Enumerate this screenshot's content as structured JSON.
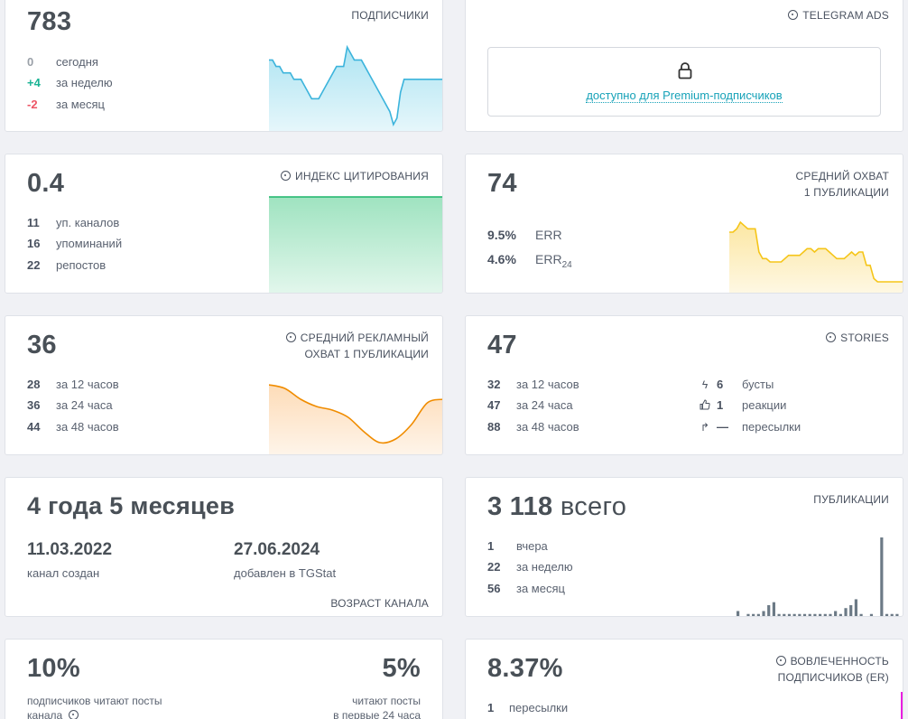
{
  "subscribers": {
    "total": "783",
    "label": "ПОДПИСЧИКИ",
    "rows": [
      {
        "num": "0",
        "text": "сегодня"
      },
      {
        "num": "+4",
        "text": "за неделю"
      },
      {
        "num": "-2",
        "text": "за месяц"
      }
    ]
  },
  "telegram_ads": {
    "label": "TELEGRAM ADS",
    "premium_text": "доступно для Premium-подписчиков"
  },
  "citation": {
    "value": "0.4",
    "label": "ИНДЕКС ЦИТИРОВАНИЯ",
    "rows": [
      {
        "num": "11",
        "text": "уп. каналов"
      },
      {
        "num": "16",
        "text": "упоминаний"
      },
      {
        "num": "22",
        "text": "репостов"
      }
    ]
  },
  "avg_reach": {
    "value": "74",
    "label_line1": "СРЕДНИЙ ОХВАТ",
    "label_line2": "1 ПУБЛИКАЦИИ",
    "err_value": "9.5%",
    "err_label": "ERR",
    "err24_value": "4.6%",
    "err24_label": "ERR",
    "err24_sub": "24"
  },
  "ad_reach": {
    "value": "36",
    "label_line1": "СРЕДНИЙ РЕКЛАМНЫЙ",
    "label_line2": "ОХВАТ 1 ПУБЛИКАЦИИ",
    "rows": [
      {
        "num": "28",
        "text": "за 12 часов"
      },
      {
        "num": "36",
        "text": "за 24 часа"
      },
      {
        "num": "44",
        "text": "за 48 часов"
      }
    ]
  },
  "stories": {
    "value": "47",
    "label": "STORIES",
    "rows": [
      {
        "num": "32",
        "text": "за 12 часов"
      },
      {
        "num": "47",
        "text": "за 24 часа"
      },
      {
        "num": "88",
        "text": "за 48 часов"
      }
    ],
    "side_rows": [
      {
        "icon": "lightning-icon",
        "num": "6",
        "text": "бусты"
      },
      {
        "icon": "thumbs-up-icon",
        "num": "1",
        "text": "реакции"
      },
      {
        "icon": "forward-arrow-icon",
        "num": "—",
        "text": "пересылки"
      }
    ]
  },
  "age": {
    "value": "4 года 5 месяцев",
    "created_date": "11.03.2022",
    "created_label": "канал создан",
    "added_date": "27.06.2024",
    "added_label": "добавлен в TGStat",
    "label": "ВОЗРАСТ КАНАЛА"
  },
  "publications": {
    "total": "3 118",
    "total_suffix": "всего",
    "label": "ПУБЛИКАЦИИ",
    "rows": [
      {
        "num": "1",
        "text": "вчера"
      },
      {
        "num": "22",
        "text": "за неделю"
      },
      {
        "num": "56",
        "text": "за месяц"
      }
    ]
  },
  "read_share": {
    "left_value": "10%",
    "left_label_1": "подписчиков читают посты",
    "left_label_2": "канала",
    "right_value": "5%",
    "right_label_1": "читают посты",
    "right_label_2": "в первые 24 часа"
  },
  "engagement": {
    "value": "8.37%",
    "label_line1": "ВОВЛЕЧЕННОСТЬ",
    "label_line2": "ПОДПИСЧИКОВ (ER)",
    "rows": [
      {
        "num": "1",
        "text": "пересылки"
      }
    ]
  },
  "chart_data": [
    {
      "type": "area",
      "name": "subscribers",
      "x": [
        1,
        2,
        3,
        4,
        5,
        6,
        7,
        8,
        9,
        10,
        11,
        12,
        13,
        14,
        15,
        16,
        17,
        18,
        19,
        20,
        21,
        22,
        23,
        24,
        25,
        26,
        27,
        28,
        29,
        30,
        31,
        32,
        33,
        34,
        35,
        36,
        37,
        38,
        39,
        40,
        41,
        42,
        43,
        44,
        45,
        46,
        47,
        48,
        49,
        50
      ],
      "values": [
        787,
        787,
        786,
        786,
        785,
        785,
        785,
        784,
        784,
        784,
        783,
        782,
        781,
        781,
        781,
        782,
        783,
        784,
        785,
        786,
        786,
        786,
        789,
        788,
        787,
        787,
        787,
        786,
        785,
        784,
        783,
        782,
        781,
        780,
        779,
        777,
        778,
        782,
        784,
        784,
        784,
        784,
        784,
        784,
        784,
        784,
        784,
        784,
        784,
        784
      ],
      "ylim": [
        776,
        790
      ],
      "color": "#3cb4dc",
      "fill": "#aee4f2"
    },
    {
      "type": "area",
      "name": "citation",
      "x": [
        1,
        2
      ],
      "values": [
        0.4,
        0.4
      ],
      "color": "#1db56a",
      "fill": "#9fe3c0"
    },
    {
      "type": "area",
      "name": "avg_reach",
      "x": [
        1,
        2,
        3,
        4,
        5,
        6,
        7,
        8,
        9,
        10,
        11,
        12,
        13,
        14,
        15,
        16,
        17,
        18,
        19,
        20,
        21,
        22,
        23,
        24,
        25,
        26,
        27,
        28,
        29,
        30,
        31,
        32,
        33,
        34,
        35,
        36,
        37,
        38,
        39,
        40,
        41,
        42,
        43,
        44,
        45,
        46,
        47,
        48
      ],
      "values": [
        78,
        78,
        79,
        81,
        80,
        79,
        79,
        79,
        72,
        70,
        70,
        69,
        69,
        69,
        69,
        70,
        71,
        71,
        71,
        71,
        72,
        73,
        73,
        72,
        73,
        73,
        73,
        72,
        71,
        70,
        70,
        70,
        71,
        72,
        71,
        72,
        72,
        68,
        68,
        64,
        63,
        63,
        63,
        63,
        63,
        63,
        63,
        63
      ],
      "ylim": [
        60,
        84
      ],
      "color": "#f5c518",
      "fill": "#fce7a3"
    },
    {
      "type": "area",
      "name": "ad_reach",
      "x": [
        1,
        2,
        3,
        4,
        5,
        6,
        7,
        8,
        9,
        10,
        11,
        12
      ],
      "values": [
        44,
        43,
        40,
        38,
        37,
        35,
        31,
        28,
        29,
        33,
        39,
        40
      ],
      "ylim": [
        25,
        46
      ],
      "color": "#f08c00",
      "fill": "#fddcb8"
    },
    {
      "type": "bar",
      "name": "publications",
      "values": [
        2,
        0,
        1,
        1,
        1,
        2,
        4,
        5,
        1,
        1,
        1,
        1,
        1,
        1,
        1,
        1,
        1,
        1,
        1,
        2,
        1,
        3,
        4,
        6,
        1,
        0,
        1,
        0,
        27,
        1,
        1,
        1
      ],
      "color": "#6c7a86"
    }
  ]
}
